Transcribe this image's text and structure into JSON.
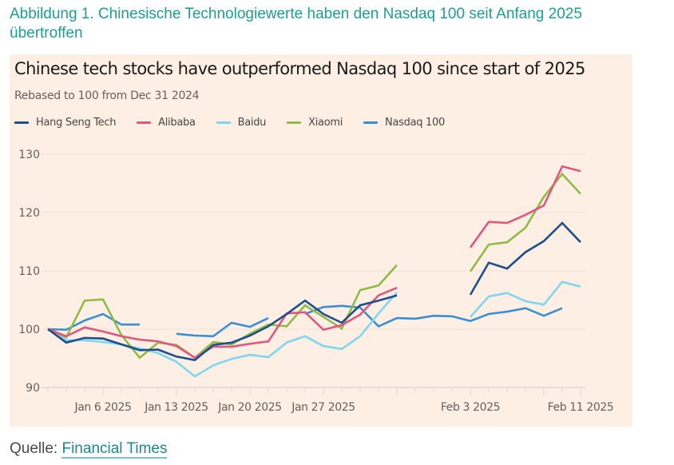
{
  "figure": {
    "caption": "Abbildung 1. Chinesische Technologiewerte haben den Nasdaq 100 seit Anfang 2025 übertroffen",
    "source_label": "Quelle:",
    "source_link": "Financial Times"
  },
  "chart_data": {
    "type": "line",
    "title": "Chinese tech stocks have outperformed Nasdaq 100 since start of 2025",
    "subtitle": "Rebased to 100 from Dec 31 2024",
    "xlabel": "",
    "ylabel": "",
    "ylim": [
      90,
      130
    ],
    "yticks": [
      90,
      100,
      110,
      120,
      130
    ],
    "grid": true,
    "legend_position": "top-left",
    "x_count": 30,
    "xtick_labels": [
      {
        "index": 3,
        "label": "Jan 6 2025"
      },
      {
        "index": 7,
        "label": "Jan 13 2025"
      },
      {
        "index": 11,
        "label": "Jan 20 2025"
      },
      {
        "index": 15,
        "label": "Jan 27 2025"
      },
      {
        "index": 23,
        "label": "Feb 3 2025"
      },
      {
        "index": 29,
        "label": "Feb 11 2025"
      }
    ],
    "major_tick_indices": [
      3,
      7,
      11,
      15,
      19,
      23,
      27,
      29
    ],
    "series": [
      {
        "name": "Hang Seng Tech",
        "color": "#1f4e8c",
        "values": [
          100,
          97.7,
          98.5,
          98.4,
          97.4,
          96.4,
          96.5,
          95.3,
          94.7,
          97.3,
          97.7,
          98.9,
          100.5,
          102.6,
          104.9,
          102.6,
          101.1,
          104.1,
          104.9,
          105.8,
          null,
          null,
          null,
          105.9,
          111.4,
          110.4,
          113.2,
          115.1,
          118.2,
          114.9
        ]
      },
      {
        "name": "Alibaba",
        "color": "#e0587f",
        "values": [
          100,
          98.8,
          100.3,
          99.6,
          98.8,
          98.2,
          97.9,
          97.1,
          95.1,
          97.0,
          97.0,
          97.5,
          97.9,
          102.7,
          102.9,
          99.9,
          100.7,
          102.5,
          105.8,
          107.1,
          null,
          null,
          null,
          114.0,
          118.4,
          118.2,
          119.6,
          121.2,
          127.9,
          127.1
        ]
      },
      {
        "name": "Baidu",
        "color": "#7fd6ee",
        "values": [
          100,
          98.1,
          98.1,
          97.8,
          97.4,
          96.7,
          95.9,
          94.4,
          91.9,
          93.8,
          94.9,
          95.6,
          95.2,
          97.7,
          98.8,
          97.1,
          96.6,
          98.8,
          102.7,
          106.3,
          null,
          null,
          null,
          102.1,
          105.6,
          106.2,
          104.8,
          104.2,
          108.1,
          107.3
        ]
      },
      {
        "name": "Xiaomi",
        "color": "#8fbc45",
        "values": [
          100,
          98.6,
          104.9,
          105.1,
          99.0,
          95.1,
          97.7,
          97.3,
          95.1,
          97.8,
          97.4,
          99.2,
          100.8,
          100.5,
          104.1,
          102.1,
          100.1,
          106.7,
          107.5,
          111.0,
          null,
          null,
          null,
          109.9,
          114.5,
          114.9,
          117.4,
          122.7,
          126.6,
          123.2
        ]
      },
      {
        "name": "Nasdaq 100",
        "color": "#3a8fd4",
        "values": [
          100,
          99.9,
          101.5,
          102.6,
          100.8,
          100.8,
          null,
          99.2,
          98.9,
          98.8,
          101.1,
          100.4,
          101.9,
          null,
          102.6,
          103.8,
          104.0,
          103.7,
          100.5,
          101.9,
          101.8,
          102.3,
          102.2,
          101.4,
          102.6,
          103.0,
          103.6,
          102.3,
          103.6,
          null
        ]
      }
    ]
  }
}
